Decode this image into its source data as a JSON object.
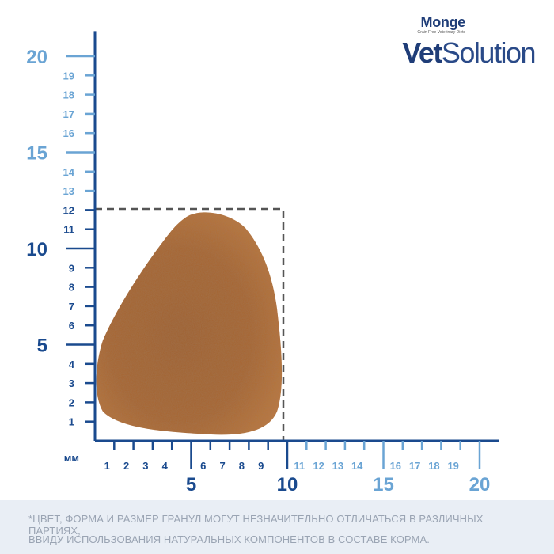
{
  "brand": {
    "name": "Monge",
    "tagline": "Grain Free Veterinary Diets",
    "product_bold": "Vet",
    "product_light": "Solution"
  },
  "unit_label": "мм",
  "y_axis": {
    "major": [
      "5",
      "10",
      "15",
      "20"
    ],
    "minor": [
      "1",
      "2",
      "3",
      "4",
      "6",
      "7",
      "8",
      "9",
      "11",
      "12",
      "13",
      "14",
      "16",
      "17",
      "18",
      "19"
    ]
  },
  "x_axis": {
    "major": [
      "5",
      "10",
      "15",
      "20"
    ],
    "minor": [
      "1",
      "2",
      "3",
      "4",
      "6",
      "7",
      "8",
      "9",
      "11",
      "12",
      "13",
      "14",
      "16",
      "17",
      "18",
      "19"
    ]
  },
  "kibble_size_mm": {
    "width": 10,
    "height": 12
  },
  "colors": {
    "dark_blue": "#1a4a8e",
    "light_blue": "#6aa4d4",
    "dashed_box": "#555555",
    "kibble": "#b06a32"
  },
  "disclaimer": {
    "line1": "*ЦВЕТ, ФОРМА И РАЗМЕР ГРАНУЛ МОГУТ НЕЗНАЧИТЕЛЬНО ОТЛИЧАТЬСЯ В РАЗЛИЧНЫХ ПАРТИЯХ,",
    "line2": "ВВИДУ ИСПОЛЬЗОВАНИЯ НАТУРАЛЬНЫХ КОМПОНЕНТОВ В СОСТАВЕ КОРМА."
  }
}
